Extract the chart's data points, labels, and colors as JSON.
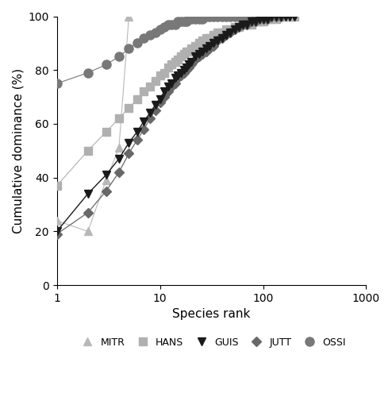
{
  "xlabel": "Species rank",
  "ylabel": "Cumulative dominance (%)",
  "series": {
    "MITR": {
      "color": "#b8b8b8",
      "marker": "^",
      "ms": 7,
      "lw": 0.8,
      "zorder": 3,
      "x": [
        1,
        2,
        3,
        4,
        5
      ],
      "y": [
        24,
        20,
        39,
        51,
        100
      ]
    },
    "HANS": {
      "color": "#b0b0b0",
      "marker": "s",
      "ms": 7,
      "lw": 0.8,
      "zorder": 3,
      "x": [
        1,
        2,
        3,
        4,
        5,
        6,
        7,
        8,
        9,
        10,
        11,
        12,
        13,
        14,
        15,
        16,
        17,
        18,
        19,
        20,
        22,
        24,
        26,
        28,
        30,
        33,
        36,
        40,
        44,
        48,
        53,
        58,
        64,
        70,
        77,
        85,
        93,
        100,
        110,
        120,
        135,
        150,
        165,
        180,
        200
      ],
      "y": [
        37,
        50,
        57,
        62,
        66,
        69,
        72,
        74,
        76,
        78,
        79,
        81,
        82,
        83,
        84,
        85,
        86,
        87,
        87,
        88,
        89,
        90,
        91,
        92,
        92,
        93,
        94,
        94,
        95,
        95,
        96,
        96,
        97,
        97,
        97,
        98,
        98,
        98,
        99,
        99,
        99,
        100,
        100,
        100,
        100
      ]
    },
    "GUIS": {
      "color": "#1a1a1a",
      "marker": "v",
      "ms": 7,
      "lw": 1.0,
      "zorder": 5,
      "x": [
        1,
        2,
        3,
        4,
        5,
        6,
        7,
        8,
        9,
        10,
        11,
        12,
        13,
        14,
        15,
        16,
        17,
        18,
        19,
        20,
        22,
        24,
        26,
        28,
        30,
        33,
        36,
        40,
        44,
        48,
        53,
        58,
        64,
        70,
        77,
        85,
        93,
        100,
        110,
        120,
        135,
        150,
        165,
        180,
        200
      ],
      "y": [
        20,
        34,
        41,
        47,
        53,
        57,
        61,
        64,
        67,
        69,
        72,
        74,
        75,
        77,
        78,
        79,
        80,
        81,
        82,
        83,
        85,
        86,
        87,
        88,
        89,
        90,
        91,
        92,
        93,
        94,
        95,
        96,
        97,
        97,
        98,
        98,
        99,
        99,
        99,
        100,
        100,
        100,
        100,
        100,
        100
      ]
    },
    "JUTT": {
      "color": "#686868",
      "marker": "D",
      "ms": 6,
      "lw": 0.9,
      "zorder": 4,
      "x": [
        1,
        2,
        3,
        4,
        5,
        6,
        7,
        8,
        9,
        10,
        11,
        12,
        13,
        14,
        15,
        16,
        17,
        18,
        19,
        20,
        22,
        24,
        26,
        28,
        30,
        33,
        36,
        40,
        44,
        48,
        53,
        58,
        64,
        70,
        77,
        85,
        93,
        100,
        110,
        120,
        135,
        150
      ],
      "y": [
        19,
        27,
        35,
        42,
        49,
        54,
        58,
        62,
        65,
        68,
        70,
        72,
        74,
        75,
        77,
        78,
        79,
        80,
        81,
        82,
        84,
        85,
        86,
        87,
        88,
        89,
        91,
        92,
        93,
        94,
        95,
        96,
        97,
        97,
        98,
        98,
        99,
        99,
        99,
        100,
        100,
        100
      ]
    },
    "OSSI": {
      "color": "#787878",
      "marker": "o",
      "ms": 8,
      "lw": 0.8,
      "zorder": 3,
      "x": [
        1,
        2,
        3,
        4,
        5,
        6,
        7,
        8,
        9,
        10,
        11,
        12,
        13,
        14,
        15,
        16,
        17,
        18,
        19,
        20,
        22,
        24,
        26,
        28,
        30,
        33,
        36,
        40,
        44,
        48,
        53,
        58,
        64,
        70,
        77,
        85,
        93,
        100
      ],
      "y": [
        75,
        79,
        82,
        85,
        88,
        90,
        92,
        93,
        94,
        95,
        96,
        97,
        97,
        97,
        98,
        98,
        98,
        98,
        99,
        99,
        99,
        99,
        99,
        100,
        100,
        100,
        100,
        100,
        100,
        100,
        100,
        100,
        100,
        100,
        100,
        100,
        100,
        100
      ]
    }
  },
  "legend_order": [
    "MITR",
    "HANS",
    "GUIS",
    "JUTT",
    "OSSI"
  ],
  "legend_colors": {
    "MITR": "#b8b8b8",
    "HANS": "#b0b0b0",
    "GUIS": "#1a1a1a",
    "JUTT": "#686868",
    "OSSI": "#787878"
  },
  "legend_markers": {
    "MITR": "^",
    "HANS": "s",
    "GUIS": "v",
    "JUTT": "D",
    "OSSI": "o"
  },
  "legend_ms": {
    "MITR": 7,
    "HANS": 7,
    "GUIS": 7,
    "JUTT": 6,
    "OSSI": 8
  }
}
